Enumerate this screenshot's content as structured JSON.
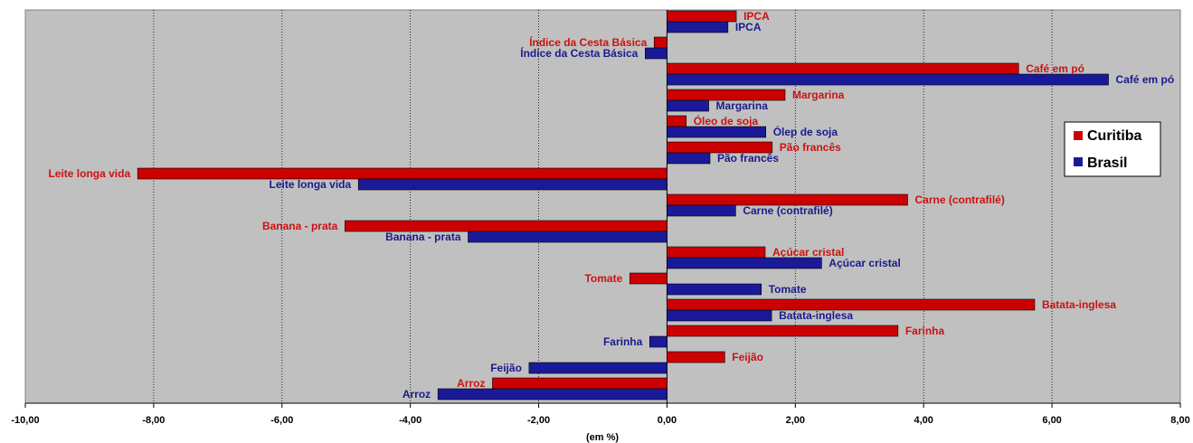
{
  "chart_data": {
    "type": "bar",
    "orientation": "horizontal",
    "xlabel": "(em %)",
    "xlim": [
      -10,
      8
    ],
    "xticks": [
      -10,
      -8,
      -6,
      -4,
      -2,
      0,
      2,
      4,
      6,
      8
    ],
    "xtick_labels": [
      "-10,00",
      "-8,00",
      "-6,00",
      "-4,00",
      "-2,00",
      "0,00",
      "2,00",
      "4,00",
      "6,00",
      "8,00"
    ],
    "grid": "vertical dotted",
    "legend_position": "right",
    "categories": [
      "IPCA",
      "Índice da Cesta Básica",
      "Café em pó",
      "Margarina",
      "Óleo de soja",
      "Pão francês",
      "Leite longa vida",
      "Carne (contrafilé)",
      "Banana - prata",
      "Açúcar cristal",
      "Tomate",
      "Batata-inglesa",
      "Farinha",
      "Feijão",
      "Arroz"
    ],
    "series": [
      {
        "name": "Curitiba",
        "color": "#cc0000",
        "label_color": "#cc1111",
        "values": [
          1.08,
          -0.2,
          5.48,
          1.84,
          0.3,
          1.64,
          -8.25,
          3.75,
          -5.02,
          1.53,
          -0.58,
          5.73,
          3.6,
          0.9,
          -2.72
        ],
        "labels": [
          "IPCA",
          "Índice da Cesta Básica",
          "Café em pó",
          "Margarina",
          "Óleo de soja",
          "Pão francês",
          "Leite longa vida",
          "Carne (contrafilé)",
          "Banana - prata",
          "Açúcar cristal",
          "Tomate",
          "Batata-inglesa",
          "Farinha",
          "Feijão",
          "Arroz"
        ]
      },
      {
        "name": "Brasil",
        "color": "#1a1a99",
        "label_color": "#1a1a8c",
        "values": [
          0.95,
          -0.34,
          6.88,
          0.65,
          1.54,
          0.67,
          -4.81,
          1.07,
          -3.1,
          2.41,
          1.47,
          1.63,
          -0.27,
          -2.15,
          -3.57
        ],
        "labels": [
          "IPCA",
          "Índice da Cesta Básica",
          "Café em pó",
          "Margarina",
          "Ólep de soja",
          "Pão francês",
          "Leite longa vida",
          "Carne (contrafilé)",
          "Banana - prata",
          "Açúcar cristal",
          "Tomate",
          "Batata-inglesa",
          "Farinha",
          "Feijão",
          "Arroz"
        ]
      }
    ]
  }
}
